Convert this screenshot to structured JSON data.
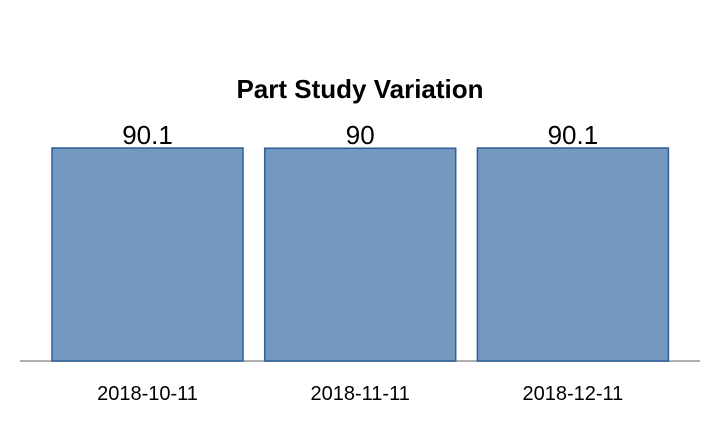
{
  "chart_data": {
    "type": "bar",
    "title": "Part Study Variation",
    "categories": [
      "2018-10-11",
      "2018-11-11",
      "2018-12-11"
    ],
    "values": [
      90.1,
      90,
      90.1
    ],
    "data_labels": [
      "90.1",
      "90",
      "90.1"
    ],
    "xlabel": "",
    "ylabel": "",
    "ylim": [
      0,
      100
    ],
    "grid": false,
    "legend": "none",
    "colors": {
      "bar_fill": "#7399c1",
      "bar_stroke": "#2e5f97",
      "axis": "#b0b0b0"
    }
  }
}
